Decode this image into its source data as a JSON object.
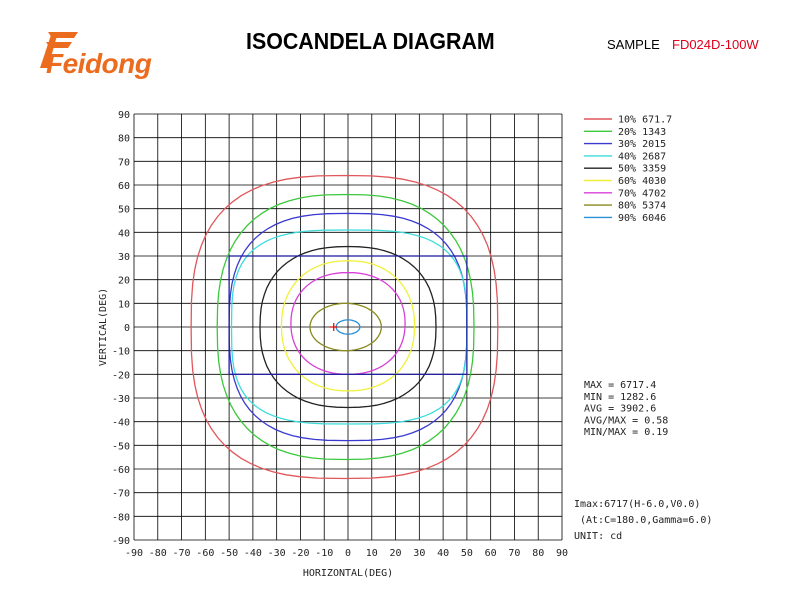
{
  "header": {
    "logo_text": "Feidong",
    "title": "ISOCANDELA DIAGRAM",
    "sample_label": "SAMPLE",
    "sample_value": "FD024D-100W",
    "colors": {
      "logo": "#ec6c1f",
      "sample_value": "#e0001b"
    }
  },
  "chart_data": {
    "type": "contour",
    "xlabel": "HORIZONTAL(DEG)",
    "ylabel": "VERTICAL(DEG)",
    "xlim": [
      -90,
      90
    ],
    "ylim": [
      -90,
      90
    ],
    "x_ticks": [
      "-90",
      "-80",
      "-70",
      "-60",
      "-50",
      "-40",
      "-30",
      "-20",
      "-10",
      "0",
      "10",
      "20",
      "30",
      "40",
      "50",
      "60",
      "70",
      "80",
      "90"
    ],
    "y_ticks": [
      "90",
      "80",
      "70",
      "60",
      "50",
      "40",
      "30",
      "20",
      "10",
      "0",
      "-10",
      "-20",
      "-30",
      "-40",
      "-50",
      "-60",
      "-70",
      "-80",
      "-90"
    ],
    "grid": true,
    "legend_position": "top-right",
    "series": [
      {
        "name": "10% 671.7",
        "color": "#e0565a",
        "xr": [
          -66,
          63
        ],
        "yr": [
          -64,
          64
        ]
      },
      {
        "name": "20% 1343",
        "color": "#3cc83c",
        "xr": [
          -55,
          53
        ],
        "yr": [
          -56,
          56
        ]
      },
      {
        "name": "30% 2015",
        "color": "#3a3ad0",
        "xr": [
          -50,
          50
        ],
        "yr": [
          -48,
          48
        ]
      },
      {
        "name": "40% 2687",
        "color": "#3ddcdc",
        "xr": [
          -49,
          50
        ],
        "yr": [
          -41,
          41
        ]
      },
      {
        "name": "50% 3359",
        "color": "#222222",
        "xr": [
          -37,
          37
        ],
        "yr": [
          -34,
          34
        ]
      },
      {
        "name": "60% 4030",
        "color": "#f0f03a",
        "xr": [
          -28,
          28
        ],
        "yr": [
          -27,
          28
        ]
      },
      {
        "name": "70% 4702",
        "color": "#d840d8",
        "xr": [
          -24,
          24
        ],
        "yr": [
          -20,
          23
        ]
      },
      {
        "name": "80% 5374",
        "color": "#8a8a1f",
        "xr": [
          -16,
          14
        ],
        "yr": [
          -10,
          10
        ]
      },
      {
        "name": "90% 6046",
        "color": "#2a90d8",
        "xr": [
          -5,
          5
        ],
        "yr": [
          -3,
          3
        ]
      }
    ],
    "rectangle": {
      "x": [
        -50,
        50
      ],
      "y": [
        -20,
        30
      ],
      "color": "#2020a0"
    },
    "peak_marker": {
      "x": -6,
      "y": 0,
      "color": "#e00000"
    },
    "stats": [
      "MAX = 6717.4",
      "MIN = 1282.6",
      "AVG = 3902.6",
      "AVG/MAX = 0.58",
      "MIN/MAX = 0.19"
    ],
    "footer": [
      "Imax:6717(H-6.0,V0.0)",
      "(At:C=180.0,Gamma=6.0)",
      "UNIT: cd"
    ]
  }
}
